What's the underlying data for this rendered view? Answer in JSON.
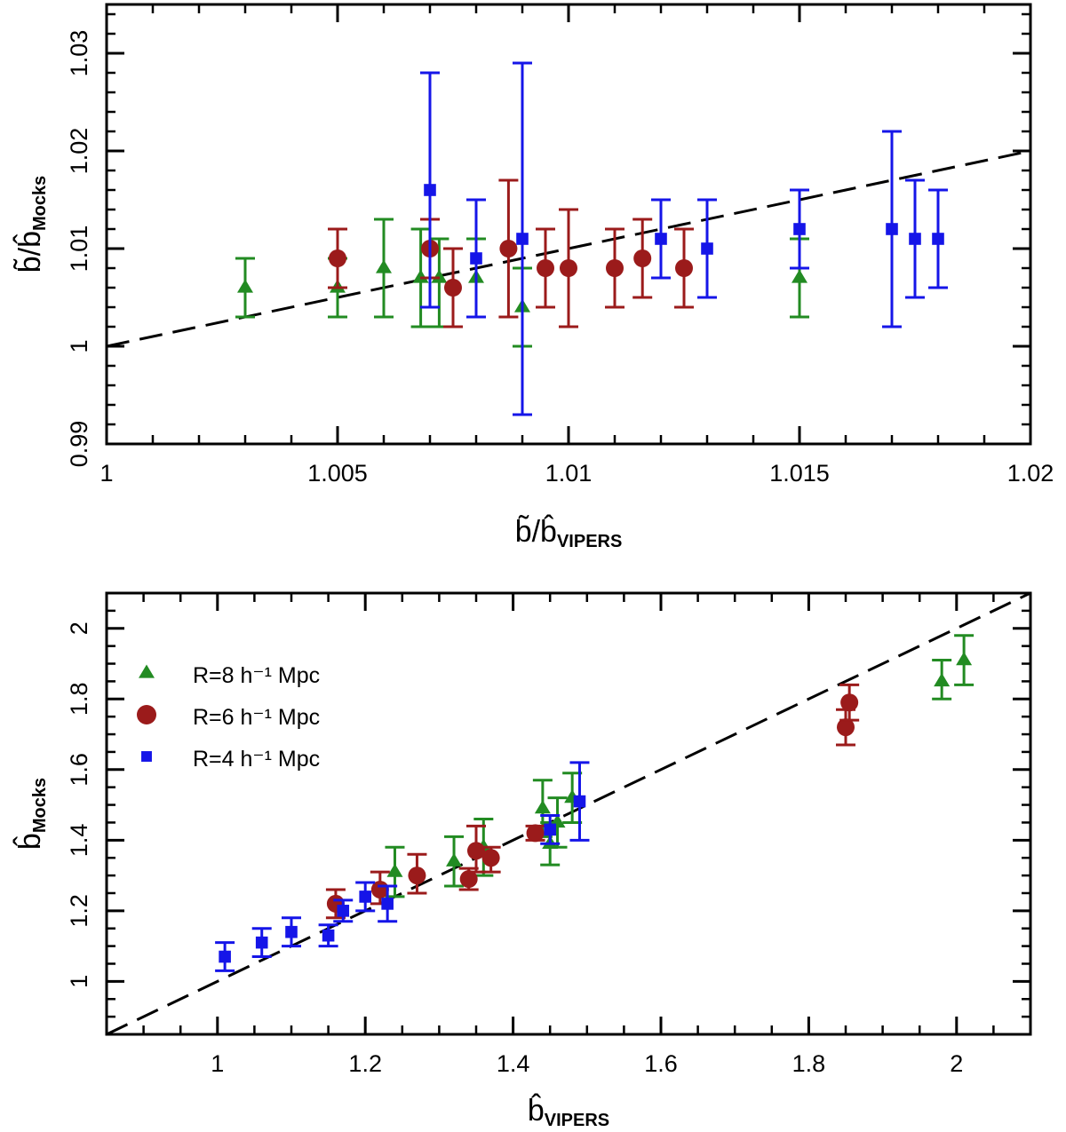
{
  "chart_data": [
    {
      "type": "scatter",
      "panel": "top",
      "xlabel": {
        "main": "b̃/b̂",
        "sub": "VIPERS"
      },
      "ylabel": {
        "main": "b̃/b̂",
        "sub": "Mocks"
      },
      "xlim": [
        1.0,
        1.02
      ],
      "ylim": [
        0.99,
        1.035
      ],
      "xticks": [
        1,
        1.005,
        1.01,
        1.015,
        1.02
      ],
      "xtick_labels": [
        "1",
        "1.005",
        "1.01",
        "1.015",
        "1.02"
      ],
      "yticks": [
        0.99,
        1,
        1.01,
        1.02,
        1.03
      ],
      "ytick_labels": [
        "0.99",
        "1",
        "1.01",
        "1.02",
        "1.03"
      ],
      "x_minor_step": 0.001,
      "y_minor_step": 0.002,
      "reference_line": {
        "style": "dashed",
        "from": [
          1.0,
          1.0
        ],
        "to": [
          1.02,
          1.02
        ]
      },
      "series": [
        {
          "color": "#228B22",
          "marker": "triangle",
          "points": [
            {
              "x": 1.003,
              "y": 1.006,
              "ylo": 1.003,
              "yhi": 1.009
            },
            {
              "x": 1.005,
              "y": 1.006,
              "ylo": 1.003,
              "yhi": 1.009
            },
            {
              "x": 1.006,
              "y": 1.008,
              "ylo": 1.003,
              "yhi": 1.013
            },
            {
              "x": 1.0068,
              "y": 1.007,
              "ylo": 1.002,
              "yhi": 1.012
            },
            {
              "x": 1.0072,
              "y": 1.007,
              "ylo": 1.002,
              "yhi": 1.011
            },
            {
              "x": 1.008,
              "y": 1.007,
              "ylo": 1.003,
              "yhi": 1.011
            },
            {
              "x": 1.009,
              "y": 1.004,
              "ylo": 1.0,
              "yhi": 1.008
            },
            {
              "x": 1.015,
              "y": 1.007,
              "ylo": 1.003,
              "yhi": 1.011
            }
          ]
        },
        {
          "color": "#9B1B1B",
          "marker": "circle",
          "points": [
            {
              "x": 1.005,
              "y": 1.009,
              "ylo": 1.006,
              "yhi": 1.012
            },
            {
              "x": 1.007,
              "y": 1.01,
              "ylo": 1.007,
              "yhi": 1.013
            },
            {
              "x": 1.0075,
              "y": 1.006,
              "ylo": 1.002,
              "yhi": 1.01
            },
            {
              "x": 1.0087,
              "y": 1.01,
              "ylo": 1.003,
              "yhi": 1.017
            },
            {
              "x": 1.0095,
              "y": 1.008,
              "ylo": 1.004,
              "yhi": 1.012
            },
            {
              "x": 1.01,
              "y": 1.008,
              "ylo": 1.002,
              "yhi": 1.014
            },
            {
              "x": 1.011,
              "y": 1.008,
              "ylo": 1.004,
              "yhi": 1.012
            },
            {
              "x": 1.0116,
              "y": 1.009,
              "ylo": 1.005,
              "yhi": 1.013
            },
            {
              "x": 1.0125,
              "y": 1.008,
              "ylo": 1.004,
              "yhi": 1.012
            }
          ]
        },
        {
          "color": "#1515E8",
          "marker": "square",
          "points": [
            {
              "x": 1.007,
              "y": 1.016,
              "ylo": 1.004,
              "yhi": 1.028
            },
            {
              "x": 1.008,
              "y": 1.009,
              "ylo": 1.003,
              "yhi": 1.015
            },
            {
              "x": 1.009,
              "y": 1.011,
              "ylo": 0.993,
              "yhi": 1.029
            },
            {
              "x": 1.012,
              "y": 1.011,
              "ylo": 1.007,
              "yhi": 1.015
            },
            {
              "x": 1.013,
              "y": 1.01,
              "ylo": 1.005,
              "yhi": 1.015
            },
            {
              "x": 1.015,
              "y": 1.012,
              "ylo": 1.008,
              "yhi": 1.016
            },
            {
              "x": 1.017,
              "y": 1.012,
              "ylo": 1.002,
              "yhi": 1.022
            },
            {
              "x": 1.0175,
              "y": 1.011,
              "ylo": 1.005,
              "yhi": 1.017
            },
            {
              "x": 1.018,
              "y": 1.011,
              "ylo": 1.006,
              "yhi": 1.016
            }
          ]
        }
      ]
    },
    {
      "type": "scatter",
      "panel": "bottom",
      "xlabel": {
        "main": "b̂",
        "sub": "VIPERS"
      },
      "ylabel": {
        "main": "b̂",
        "sub": "Mocks"
      },
      "xlim": [
        0.85,
        2.1
      ],
      "ylim": [
        0.85,
        2.1
      ],
      "xticks": [
        1,
        1.2,
        1.4,
        1.6,
        1.8,
        2
      ],
      "xtick_labels": [
        "1",
        "1.2",
        "1.4",
        "1.6",
        "1.8",
        "2"
      ],
      "yticks": [
        1,
        1.2,
        1.4,
        1.6,
        1.8,
        2
      ],
      "ytick_labels": [
        "1",
        "1.2",
        "1.4",
        "1.6",
        "1.8",
        "2"
      ],
      "x_minor_step": 0.05,
      "y_minor_step": 0.05,
      "reference_line": {
        "style": "dashed",
        "from": [
          0.85,
          0.85
        ],
        "to": [
          2.1,
          2.1
        ]
      },
      "legend": {
        "placement": "top-left",
        "entries": [
          {
            "label": "R=8 h⁻¹ Mpc",
            "color": "#228B22",
            "marker": "triangle"
          },
          {
            "label": "R=6 h⁻¹ Mpc",
            "color": "#9B1B1B",
            "marker": "circle"
          },
          {
            "label": "R=4 h⁻¹ Mpc",
            "color": "#1515E8",
            "marker": "square"
          }
        ]
      },
      "series": [
        {
          "color": "#228B22",
          "marker": "triangle",
          "points": [
            {
              "x": 1.24,
              "y": 1.31,
              "ylo": 1.24,
              "yhi": 1.38
            },
            {
              "x": 1.32,
              "y": 1.34,
              "ylo": 1.27,
              "yhi": 1.41
            },
            {
              "x": 1.36,
              "y": 1.38,
              "ylo": 1.3,
              "yhi": 1.46
            },
            {
              "x": 1.44,
              "y": 1.49,
              "ylo": 1.41,
              "yhi": 1.57
            },
            {
              "x": 1.45,
              "y": 1.39,
              "ylo": 1.33,
              "yhi": 1.45
            },
            {
              "x": 1.46,
              "y": 1.45,
              "ylo": 1.38,
              "yhi": 1.52
            },
            {
              "x": 1.48,
              "y": 1.52,
              "ylo": 1.45,
              "yhi": 1.59
            },
            {
              "x": 1.98,
              "y": 1.85,
              "ylo": 1.8,
              "yhi": 1.91
            },
            {
              "x": 2.01,
              "y": 1.91,
              "ylo": 1.84,
              "yhi": 1.98
            }
          ]
        },
        {
          "color": "#9B1B1B",
          "marker": "circle",
          "points": [
            {
              "x": 1.16,
              "y": 1.22,
              "ylo": 1.18,
              "yhi": 1.26
            },
            {
              "x": 1.22,
              "y": 1.26,
              "ylo": 1.22,
              "yhi": 1.31
            },
            {
              "x": 1.27,
              "y": 1.3,
              "ylo": 1.25,
              "yhi": 1.36
            },
            {
              "x": 1.34,
              "y": 1.29,
              "ylo": 1.26,
              "yhi": 1.32
            },
            {
              "x": 1.35,
              "y": 1.37,
              "ylo": 1.31,
              "yhi": 1.44
            },
            {
              "x": 1.37,
              "y": 1.35,
              "ylo": 1.31,
              "yhi": 1.38
            },
            {
              "x": 1.43,
              "y": 1.42,
              "ylo": 1.4,
              "yhi": 1.44
            },
            {
              "x": 1.85,
              "y": 1.72,
              "ylo": 1.67,
              "yhi": 1.77
            },
            {
              "x": 1.855,
              "y": 1.79,
              "ylo": 1.74,
              "yhi": 1.84
            }
          ]
        },
        {
          "color": "#1515E8",
          "marker": "square",
          "points": [
            {
              "x": 1.01,
              "y": 1.07,
              "ylo": 1.03,
              "yhi": 1.11
            },
            {
              "x": 1.06,
              "y": 1.11,
              "ylo": 1.07,
              "yhi": 1.15
            },
            {
              "x": 1.1,
              "y": 1.14,
              "ylo": 1.1,
              "yhi": 1.18
            },
            {
              "x": 1.15,
              "y": 1.13,
              "ylo": 1.1,
              "yhi": 1.16
            },
            {
              "x": 1.17,
              "y": 1.2,
              "ylo": 1.17,
              "yhi": 1.23
            },
            {
              "x": 1.2,
              "y": 1.24,
              "ylo": 1.2,
              "yhi": 1.28
            },
            {
              "x": 1.23,
              "y": 1.22,
              "ylo": 1.17,
              "yhi": 1.27
            },
            {
              "x": 1.45,
              "y": 1.43,
              "ylo": 1.39,
              "yhi": 1.47
            },
            {
              "x": 1.49,
              "y": 1.51,
              "ylo": 1.4,
              "yhi": 1.62
            }
          ]
        }
      ]
    }
  ]
}
